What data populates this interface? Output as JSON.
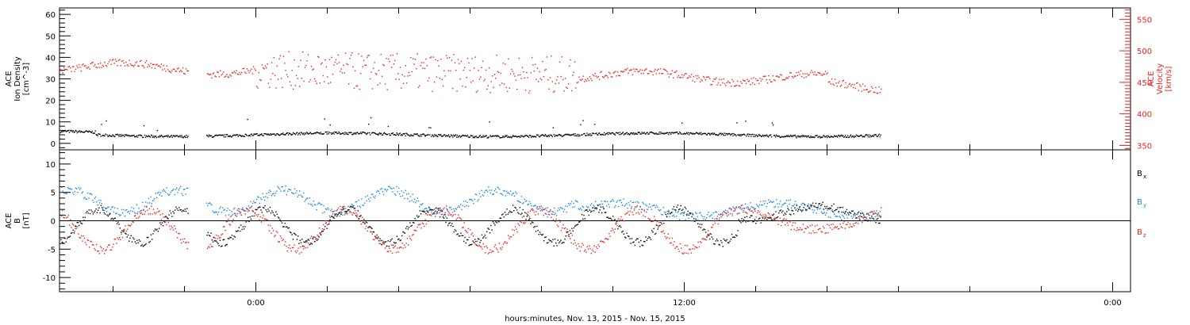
{
  "xaxis": {
    "tick_labels": [
      "0:00",
      "12:00",
      "0:00"
    ],
    "title": "hours:minutes, Nov. 13, 2015 - Nov. 15, 2015",
    "range_hours": [
      -5.5,
      24.5
    ],
    "data_end_hours": 17.5,
    "gap_hours": [
      -1.9,
      -1.4
    ]
  },
  "colors": {
    "black": "#000000",
    "red": "#e8231c",
    "blue": "#1c87d9"
  },
  "chart_data": [
    {
      "type": "scatter",
      "panel": "plasma",
      "ylabel_left": [
        "ACE",
        "Ion Density",
        "[cm^-3]"
      ],
      "ylabel_right": [
        "ACE",
        "Velocity",
        "[km/s]"
      ],
      "left_axis": {
        "range": [
          -3,
          63
        ],
        "ticks": [
          "0",
          "10",
          "20",
          "30",
          "40",
          "50",
          "60"
        ]
      },
      "right_axis": {
        "range": [
          343,
          568
        ],
        "ticks": [
          "350",
          "400",
          "450",
          "500",
          "550"
        ]
      },
      "series": [
        {
          "label": "Ion Density",
          "color": "black",
          "axis": "left",
          "typical": 4.5
        },
        {
          "label": "Velocity",
          "color": "red",
          "axis": "right",
          "typical": 460
        }
      ]
    },
    {
      "type": "scatter",
      "panel": "magnetic field",
      "ylabel_left": [
        "ACE",
        "B",
        "[nT]"
      ],
      "left_axis": {
        "range": [
          -12.5,
          12.5
        ],
        "ticks": [
          "10",
          "5",
          "0",
          "-5",
          "-10"
        ]
      },
      "legend": [
        {
          "label": "B",
          "sub": "x",
          "color": "black"
        },
        {
          "label": "B",
          "sub": "y",
          "color": "blue"
        },
        {
          "label": "B",
          "sub": "z",
          "color": "red"
        }
      ],
      "series": [
        {
          "label": "Bx",
          "color": "black",
          "typical_range": [
            -5,
            3
          ]
        },
        {
          "label": "By",
          "color": "blue",
          "typical_range": [
            1,
            6
          ]
        },
        {
          "label": "Bz",
          "color": "red",
          "typical_range": [
            -6,
            4
          ]
        }
      ]
    }
  ]
}
